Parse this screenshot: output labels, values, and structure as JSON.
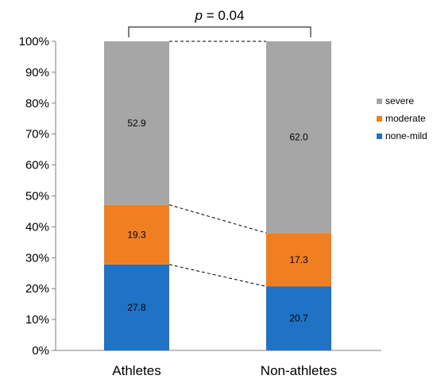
{
  "chart_data": {
    "type": "bar",
    "stacked": true,
    "categories": [
      "Athletes",
      "Non-athletes"
    ],
    "series": [
      {
        "name": "none-mild",
        "values": [
          27.8,
          20.7
        ],
        "color": "#1f72c4"
      },
      {
        "name": "moderate",
        "values": [
          19.3,
          17.3
        ],
        "color": "#f07f22"
      },
      {
        "name": "severe",
        "values": [
          52.9,
          62.0
        ],
        "color": "#a6a6a6"
      }
    ],
    "ylim": [
      0,
      100
    ],
    "yticks": [
      "0%",
      "10%",
      "20%",
      "30%",
      "40%",
      "50%",
      "60%",
      "70%",
      "80%",
      "90%",
      "100%"
    ],
    "legend_position": "right",
    "legend_order": [
      "severe",
      "moderate",
      "none-mild"
    ],
    "annotation": {
      "p_symbol": "p",
      "p_rest": " = 0.04"
    },
    "grid": false,
    "connector_lines": "dashed"
  }
}
